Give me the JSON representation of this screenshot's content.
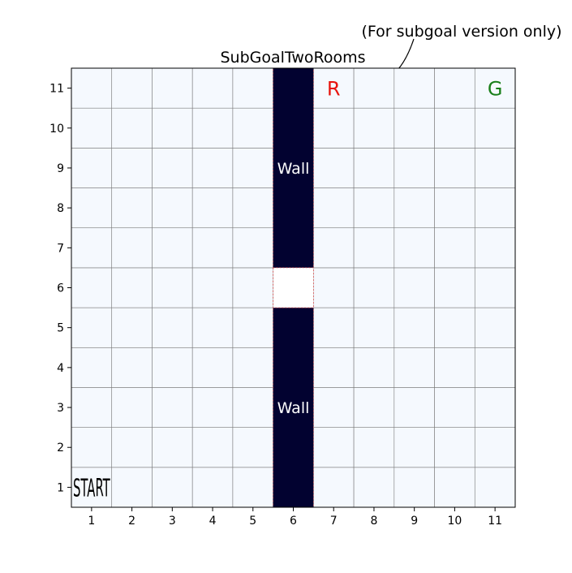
{
  "title": "SubGoalTwoRooms",
  "annotation": "(For subgoal version only)",
  "grid": {
    "cols": 11,
    "rows": 11,
    "x_ticks": [
      "1",
      "2",
      "3",
      "4",
      "5",
      "6",
      "7",
      "8",
      "9",
      "10",
      "11"
    ],
    "y_ticks": [
      "1",
      "2",
      "3",
      "4",
      "5",
      "6",
      "7",
      "8",
      "9",
      "10",
      "11"
    ]
  },
  "cells": {
    "start": {
      "col": 1,
      "row": 1,
      "label": "START",
      "color": "#000000"
    },
    "subgoal": {
      "col": 7,
      "row": 11,
      "label": "R",
      "color": "#e8150f"
    },
    "goal": {
      "col": 11,
      "row": 11,
      "label": "G",
      "color": "#1a7f1a"
    }
  },
  "walls": [
    {
      "col": 6,
      "row_from": 7,
      "row_to": 11,
      "label": "Wall",
      "label_row": 9
    },
    {
      "col": 6,
      "row_from": 1,
      "row_to": 5,
      "label": "Wall",
      "label_row": 3
    }
  ],
  "door": {
    "col": 6,
    "row": 6
  },
  "colors": {
    "cell_bg": "#f5f9fe",
    "wall": "#020230",
    "wall_text": "#ffffff",
    "grid_line": "#7a7a7a",
    "door_border": "#e05050"
  }
}
